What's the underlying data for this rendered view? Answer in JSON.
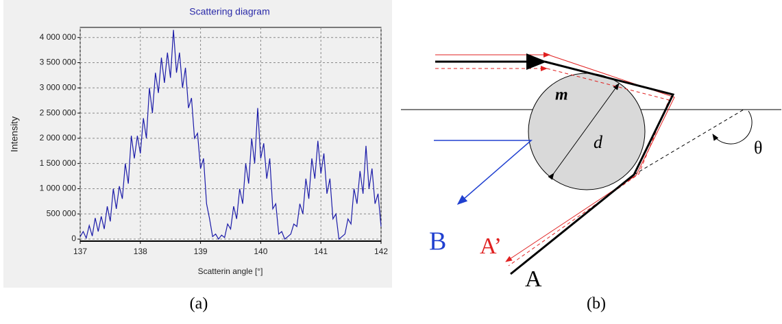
{
  "chart_data": {
    "type": "line",
    "title": "Scattering diagram",
    "x_label": "Scatterin angle [°]",
    "y_label": "Intensity",
    "x": [
      137.0,
      137.05,
      137.1,
      137.15,
      137.2,
      137.25,
      137.3,
      137.35,
      137.4,
      137.45,
      137.5,
      137.55,
      137.6,
      137.65,
      137.7,
      137.75,
      137.8,
      137.85,
      137.9,
      137.95,
      138.0,
      138.05,
      138.1,
      138.15,
      138.2,
      138.25,
      138.3,
      138.35,
      138.4,
      138.45,
      138.5,
      138.55,
      138.6,
      138.65,
      138.7,
      138.75,
      138.8,
      138.85,
      138.9,
      138.95,
      139.0,
      139.05,
      139.1,
      139.15,
      139.2,
      139.25,
      139.3,
      139.35,
      139.4,
      139.45,
      139.5,
      139.55,
      139.6,
      139.65,
      139.7,
      139.75,
      139.8,
      139.85,
      139.9,
      139.95,
      140.0,
      140.05,
      140.1,
      140.15,
      140.2,
      140.25,
      140.3,
      140.35,
      140.4,
      140.45,
      140.5,
      140.55,
      140.6,
      140.65,
      140.7,
      140.75,
      140.8,
      140.85,
      140.9,
      140.95,
      141.0,
      141.05,
      141.1,
      141.15,
      141.2,
      141.25,
      141.3,
      141.35,
      141.4,
      141.45,
      141.5,
      141.55,
      141.6,
      141.65,
      141.7,
      141.75,
      141.8,
      141.85,
      141.9,
      141.95,
      142.0
    ],
    "series": [
      {
        "name": "Intensity",
        "color": "#1a1aa8",
        "values": [
          50000,
          150000,
          20000,
          270000,
          60000,
          420000,
          150000,
          450000,
          200000,
          650000,
          350000,
          1000000,
          600000,
          1050000,
          800000,
          1500000,
          1100000,
          2050000,
          1600000,
          2050000,
          1700000,
          2400000,
          2000000,
          3000000,
          2500000,
          3300000,
          2900000,
          3600000,
          3100000,
          3700000,
          3200000,
          4150000,
          3300000,
          3700000,
          3000000,
          3400000,
          2600000,
          2800000,
          2000000,
          2100000,
          1400000,
          1600000,
          700000,
          400000,
          50000,
          100000,
          0,
          80000,
          30000,
          300000,
          200000,
          650000,
          400000,
          1000000,
          700000,
          1500000,
          1100000,
          2000000,
          1500000,
          2600000,
          1600000,
          1900000,
          1200000,
          1600000,
          600000,
          700000,
          100000,
          150000,
          0,
          50000,
          100000,
          300000,
          250000,
          700000,
          500000,
          1200000,
          800000,
          1600000,
          1200000,
          1950000,
          1300000,
          1700000,
          900000,
          1200000,
          400000,
          500000,
          0,
          50000,
          100000,
          400000,
          300000,
          1000000,
          700000,
          1350000,
          900000,
          1850000,
          1000000,
          1400000,
          700000,
          900000,
          250000
        ]
      }
    ],
    "xlim": [
      137,
      142
    ],
    "xticks": [
      137,
      138,
      139,
      140,
      141,
      142
    ],
    "ylim": [
      -40000,
      4200000
    ],
    "yticks": [
      0,
      {
        "value": 500000,
        "label": "500 000"
      },
      {
        "value": 1000000,
        "label": "1 000 000"
      },
      {
        "value": 1500000,
        "label": "1 500 000"
      },
      {
        "value": 2000000,
        "label": "2 000 000"
      },
      {
        "value": 2500000,
        "label": "2 500 000"
      },
      {
        "value": 3000000,
        "label": "3 000 000"
      },
      {
        "value": 3500000,
        "label": "3 500 000"
      },
      {
        "value": 4000000,
        "label": "4 000 000"
      }
    ],
    "grid": true
  },
  "diagram": {
    "labels": [
      "m",
      "d",
      "θ",
      "A",
      "A’",
      "B"
    ]
  },
  "captions": [
    "(a)",
    "(b)"
  ]
}
